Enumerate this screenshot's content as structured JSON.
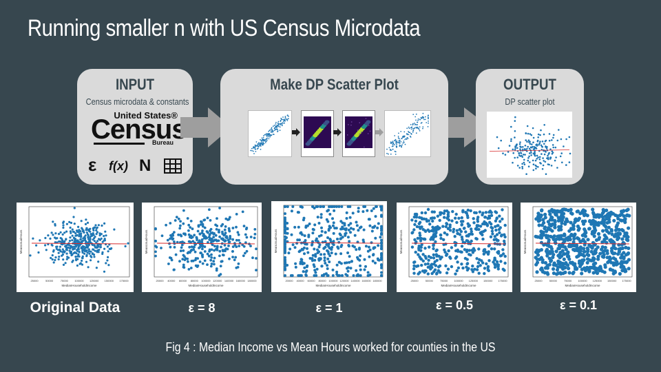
{
  "title": "Running smaller n with US Census Microdata",
  "input": {
    "heading": "INPUT",
    "subtitle": "Census microdata & constants",
    "logo": {
      "line1": "United States®",
      "line2": "Census",
      "line3": "Bureau"
    },
    "symbols": [
      "ε",
      "f(x)",
      "N",
      "grid-icon"
    ]
  },
  "process": {
    "heading": "Make DP Scatter Plot"
  },
  "output": {
    "heading": "OUTPUT",
    "subtitle": "DP scatter plot"
  },
  "panels": [
    {
      "label": "Original Data",
      "xlabel": "MedianHouseholdIncome",
      "ylabel": "MeanUsualHours",
      "xticks": [
        "25000",
        "50000",
        "75000",
        "100000",
        "125000",
        "150000",
        "175000"
      ]
    },
    {
      "label": "ε = 8",
      "xlabel": "MedianHouseholdIncome",
      "ylabel": "MeanUsualHours",
      "xticks": [
        "20000",
        "40000",
        "60000",
        "80000",
        "100000",
        "120000",
        "140000",
        "160000",
        "180000"
      ]
    },
    {
      "label": "ε = 1",
      "xlabel": "MedianHouseholdIncome",
      "ylabel": "MeanUsualHours",
      "xticks": [
        "20000",
        "40000",
        "60000",
        "80000",
        "100000",
        "120000",
        "140000",
        "160000",
        "180000"
      ]
    },
    {
      "label": "ε = 0.5",
      "xlabel": "MedianHouseholdIncome",
      "ylabel": "MeanUsualHours",
      "xticks": [
        "25000",
        "50000",
        "75000",
        "100000",
        "125000",
        "150000",
        "175000"
      ]
    },
    {
      "label": "ε = 0.1",
      "xlabel": "MedianHouseholdIncome",
      "ylabel": "MeanUsualHours",
      "xticks": [
        "25000",
        "50000",
        "75000",
        "100000",
        "125000",
        "150000",
        "175000"
      ]
    }
  ],
  "caption": "Fig 4 : Median Income vs Mean Hours worked for counties in the US",
  "colors": {
    "background": "#37474f",
    "box": "#dadada",
    "point": "#1f77b4",
    "trend": "#d62728"
  }
}
